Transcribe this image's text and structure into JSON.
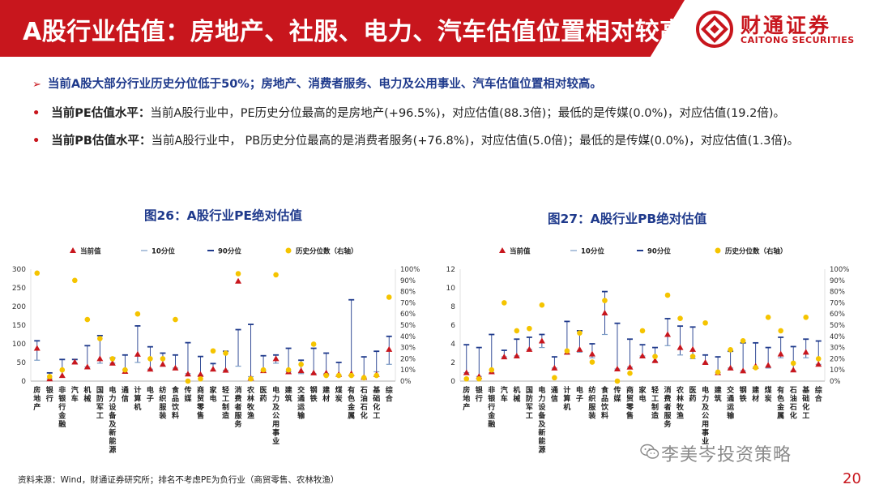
{
  "header": {
    "title": "A股行业估值：房地产、社服、电力、汽车估值位置相对较高"
  },
  "logo": {
    "cn": "财通证券",
    "en": "CAITONG SECURITIES"
  },
  "headline": "当前A股大部分行业历史分位低于50%；房地产、消费者服务、电力及公用事业、汽车估值位置相对较高。",
  "bullets": [
    {
      "lead": "当前PE估值水平：",
      "text": "当前A股行业中，PE历史分位最高的是房地产(+96.5%)，对应估值(88.3倍)；最低的是传媒(0.0%)，对应估值(19.2倍)。"
    },
    {
      "lead": "当前PB估值水平：",
      "text": "当前A股行业中， PB历史分位最高的是消费者服务(+76.8%)，对应估值(5.0倍)；最低的是传媒(0.0%)，对应估值(1.3倍)。"
    }
  ],
  "chart_titles": [
    "图26：A股行业PE绝对估值",
    "图27：A股行业PB绝对估值"
  ],
  "colors": {
    "red": "#c8161d",
    "navy": "#1f3a8c",
    "gold": "#f5c400",
    "line": "#1f3a8c",
    "grid": "#999999"
  },
  "chart_data": [
    {
      "type": "scatter",
      "title": "图26：A股行业PE绝对估值",
      "legend": [
        "当前值",
        "10分位",
        "90分位",
        "历史分位数（右轴）"
      ],
      "left_ticks": [
        "300",
        "250",
        "200",
        "150",
        "100",
        "50",
        "0"
      ],
      "right_ticks": [
        "100%",
        "90%",
        "80%",
        "70%",
        "60%",
        "50%",
        "40%",
        "30%",
        "20%",
        "10%",
        "0%"
      ],
      "ylim": [
        0,
        300
      ],
      "y2lim": [
        0,
        100
      ],
      "categories": [
        "房地产",
        "银行",
        "非银行金融",
        "汽车",
        "机械",
        "国防军工",
        "电力设备及新能源",
        "通信",
        "计算机",
        "电子",
        "纺织服装",
        "食品饮料",
        "传媒",
        "商贸零售",
        "家电",
        "轻工制造",
        "消费者服务",
        "农林牧渔",
        "医药",
        "电力及公用事业",
        "建筑",
        "交通运输",
        "钢铁",
        "建材",
        "煤炭",
        "有色金属",
        "石油石化",
        "基础化工",
        "综合"
      ],
      "current": [
        88,
        6,
        15,
        51,
        38,
        60,
        48,
        26,
        72,
        32,
        45,
        35,
        19,
        18,
        32,
        29,
        268,
        8,
        28,
        60,
        25,
        28,
        22,
        22,
        18,
        20,
        10,
        18,
        85
      ],
      "p10": [
        56,
        6,
        10,
        48,
        38,
        48,
        48,
        30,
        50,
        32,
        40,
        35,
        20,
        16,
        28,
        29,
        40,
        12,
        28,
        48,
        25,
        20,
        20,
        20,
        16,
        15,
        8,
        25,
        45
      ],
      "p90": [
        108,
        22,
        58,
        58,
        95,
        122,
        62,
        70,
        148,
        92,
        75,
        70,
        103,
        66,
        47,
        80,
        138,
        152,
        68,
        70,
        88,
        56,
        88,
        75,
        50,
        218,
        65,
        80,
        120
      ],
      "pct": [
        96.5,
        4,
        10,
        90,
        55,
        38,
        20,
        10,
        60,
        20,
        20,
        55,
        0,
        2,
        27,
        25,
        96,
        2,
        10,
        95,
        10,
        15,
        33,
        5,
        5,
        5,
        3,
        5,
        75
      ],
      "xlabels": [
        "房地产",
        "银行",
        "非银行金融",
        "汽车",
        "机械",
        "国防军工",
        "电力设备及新能源",
        "通信",
        "计算机",
        "电子",
        "纺织服装",
        "食品饮料",
        "传媒",
        "商贸零售",
        "家电",
        "轻工制造",
        "消费者服务",
        "农林牧渔",
        "医药",
        "电力及公用事业",
        "建筑",
        "交通运输",
        "钢铁",
        "建材",
        "煤炭",
        "有色金属",
        "石油石化",
        "基础化工",
        "综合"
      ]
    },
    {
      "type": "scatter",
      "title": "图27：A股行业PB绝对估值",
      "legend": [
        "当前值",
        "10分位",
        "90分位",
        "历史分位数（右轴）"
      ],
      "left_ticks": [
        "12",
        "10",
        "8",
        "6",
        "4",
        "2",
        "0"
      ],
      "right_ticks": [
        "100%",
        "90%",
        "80%",
        "70%",
        "60%",
        "50%",
        "40%",
        "30%",
        "20%",
        "10%",
        "0%"
      ],
      "ylim": [
        0,
        12
      ],
      "y2lim": [
        0,
        100
      ],
      "categories": [
        "房地产",
        "银行",
        "非银行金融",
        "汽车",
        "机械",
        "国防军工",
        "电力设备及新能源",
        "通信",
        "计算机",
        "电子",
        "纺织服装",
        "食品饮料",
        "传媒",
        "商贸零售",
        "家电",
        "轻工制造",
        "消费者服务",
        "农林牧渔",
        "医药",
        "电力及公用事业",
        "建筑",
        "交通运输",
        "钢铁",
        "建材",
        "煤炭",
        "有色金属",
        "石油石化",
        "基础化工",
        "综合"
      ],
      "current": [
        0.9,
        0.5,
        1.0,
        2.6,
        2.7,
        3.4,
        4.3,
        1.4,
        3.1,
        3.4,
        2.9,
        7.3,
        1.3,
        1.5,
        2.7,
        2.2,
        5.0,
        3.6,
        3.4,
        2.0,
        0.9,
        1.4,
        1.1,
        1.6,
        1.7,
        2.9,
        1.2,
        3.1,
        1.8
      ],
      "p10": [
        0.9,
        0.5,
        0.9,
        2.6,
        2.7,
        3.4,
        3.6,
        1.4,
        2.9,
        3.1,
        2.5,
        5.0,
        1.3,
        1.5,
        2.7,
        2.1,
        3.8,
        2.8,
        2.4,
        1.9,
        0.9,
        1.4,
        1.1,
        1.5,
        1.4,
        2.5,
        1.1,
        2.5,
        1.8
      ],
      "p90": [
        3.9,
        3.6,
        5.0,
        3.3,
        4.5,
        4.7,
        5.0,
        2.6,
        6.4,
        5.4,
        4.0,
        9.6,
        6.2,
        4.5,
        3.9,
        3.6,
        6.7,
        5.9,
        5.8,
        2.8,
        2.6,
        3.2,
        4.1,
        4.1,
        3.6,
        4.7,
        3.7,
        4.5,
        4.3
      ],
      "pct": [
        2,
        2,
        10,
        70,
        45,
        47,
        68,
        3,
        27,
        43,
        17,
        72,
        0,
        7,
        45,
        22,
        76.8,
        56,
        22,
        52,
        8,
        28,
        36,
        12,
        57,
        45,
        16,
        57,
        20
      ],
      "xlabels": [
        "房地产",
        "银行",
        "非银行金融",
        "汽车",
        "机械",
        "国防军工",
        "电力设备及新能源",
        "通信",
        "计算机",
        "电子",
        "纺织服装",
        "食品饮料",
        "传媒",
        "商贸零售",
        "家电",
        "轻工制造",
        "消费者服务",
        "农林牧渔",
        "医药",
        "电力及公用事业",
        "建筑",
        "交通运输",
        "钢铁",
        "建材",
        "煤炭",
        "有色金属",
        "石油石化",
        "基础化工",
        "综合"
      ]
    }
  ],
  "source": "资料来源：Wind，财通证券研究所；排名不考虑PE为负行业（商贸零售、农林牧渔）",
  "watermark": "李美岑投资策略",
  "page_number": "20",
  "icons": {
    "bullet_arrow": "arrow-right-icon",
    "bullet_dot": "dot-icon",
    "logo": "caitong-logo-icon",
    "wechat": "wechat-icon"
  }
}
